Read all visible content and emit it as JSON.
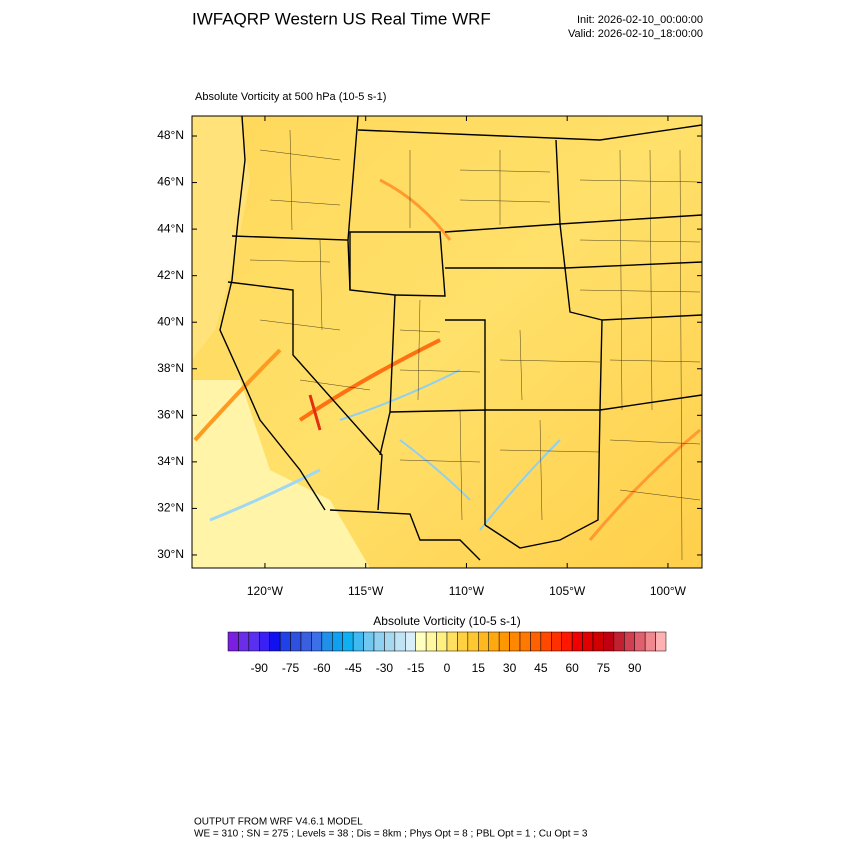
{
  "header": {
    "title": "IWFAQRP Western US Real Time WRF",
    "init": "Init: 2026-02-10_00:00:00",
    "valid": "Valid: 2026-02-10_18:00:00"
  },
  "map": {
    "subtitle": "Absolute Vorticity at 500 hPa   (10-5 s-1)",
    "xlim": [
      -123.62,
      -98.31
    ],
    "ylim": [
      29.44,
      48.86
    ],
    "yticks": [
      {
        "value": 30,
        "label": "30°N"
      },
      {
        "value": 32,
        "label": "32°N"
      },
      {
        "value": 34,
        "label": "34°N"
      },
      {
        "value": 36,
        "label": "36°N"
      },
      {
        "value": 38,
        "label": "38°N"
      },
      {
        "value": 40,
        "label": "40°N"
      },
      {
        "value": 42,
        "label": "42°N"
      },
      {
        "value": 44,
        "label": "44°N"
      },
      {
        "value": 46,
        "label": "46°N"
      },
      {
        "value": 48,
        "label": "48°N"
      }
    ],
    "xticks": [
      {
        "value": -120,
        "label": "120°W"
      },
      {
        "value": -115,
        "label": "115°W"
      },
      {
        "value": -110,
        "label": "110°W"
      },
      {
        "value": -105,
        "label": "105°W"
      },
      {
        "value": -100,
        "label": "100°W"
      }
    ]
  },
  "colorbar": {
    "title": "Absolute Vorticity  (10-5 s-1)",
    "lim": [
      -105,
      105
    ],
    "ticks": [
      -90,
      -75,
      -60,
      -45,
      -30,
      -15,
      0,
      15,
      30,
      45,
      60,
      75,
      90
    ],
    "colors": [
      "#7a1fe0",
      "#6a2ee8",
      "#5a30f0",
      "#3a20f5",
      "#1010f0",
      "#2040e8",
      "#3050e0",
      "#3a60e0",
      "#3c70e8",
      "#2090e8",
      "#10a0f0",
      "#10b0f0",
      "#40b8f0",
      "#70c8f0",
      "#90d0f0",
      "#a8d8f0",
      "#c0e4f4",
      "#d8eef8",
      "#ffffc0",
      "#fff8a0",
      "#fff080",
      "#ffe060",
      "#ffd040",
      "#ffc830",
      "#ffb820",
      "#ffa810",
      "#ff9800",
      "#ff8800",
      "#ff7800",
      "#ff6000",
      "#ff4800",
      "#ff3000",
      "#ff1800",
      "#f00000",
      "#e00000",
      "#d00000",
      "#c00010",
      "#c02030",
      "#d04050",
      "#e06070",
      "#f08890",
      "#ffb0b0"
    ]
  },
  "footer": {
    "line1": "OUTPUT FROM WRF V4.6.1 MODEL",
    "line2": "WE = 310 ; SN = 275 ; Levels = 38 ; Dis = 8km ; Phys Opt = 8 ; PBL Opt = 1 ; Cu Opt = 3"
  }
}
